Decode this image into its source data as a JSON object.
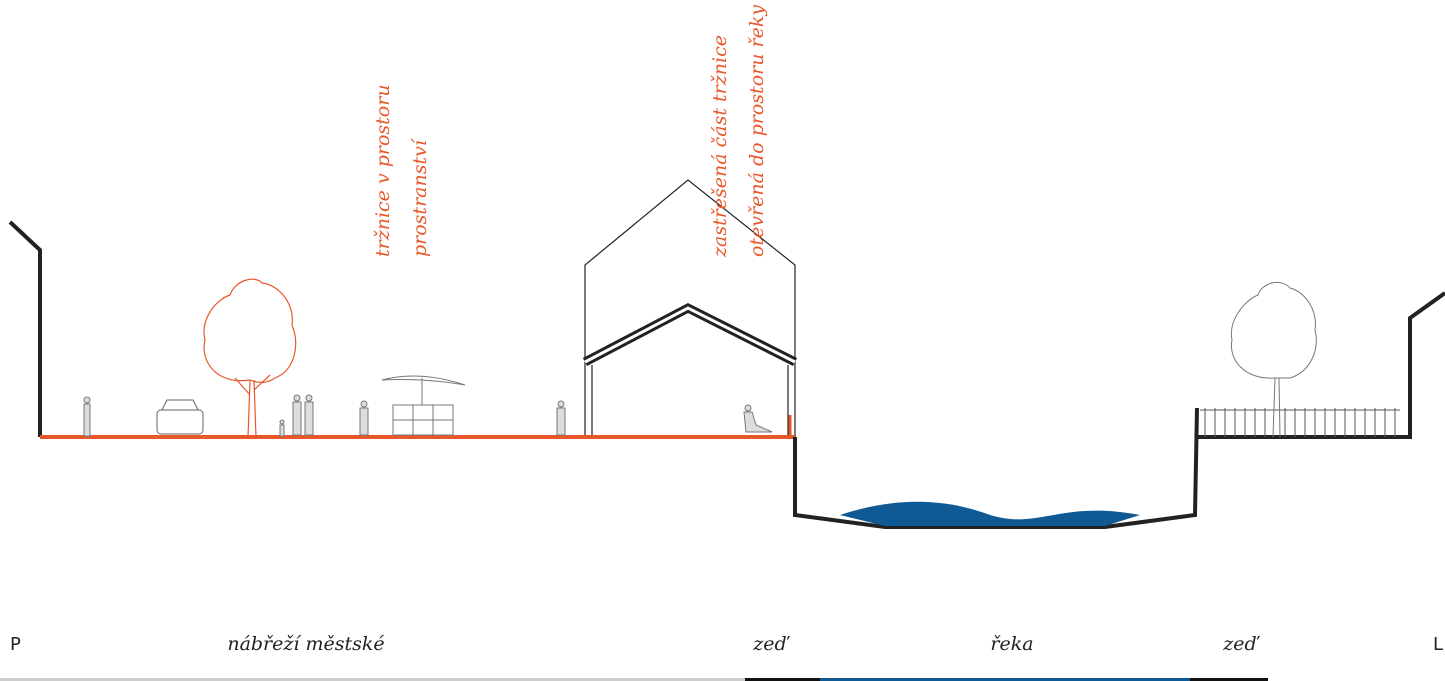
{
  "annotations": {
    "market": [
      "tržnice v prostoru",
      "prostranství"
    ],
    "roofed": [
      "zastřešená část tržnice",
      "otevřená do prostoru řeky"
    ]
  },
  "legend": {
    "left": "P",
    "embankment": "nábřeží městské",
    "wall_left": "zeď",
    "river": "řeka",
    "wall_right": "zeď",
    "right": "L"
  }
}
